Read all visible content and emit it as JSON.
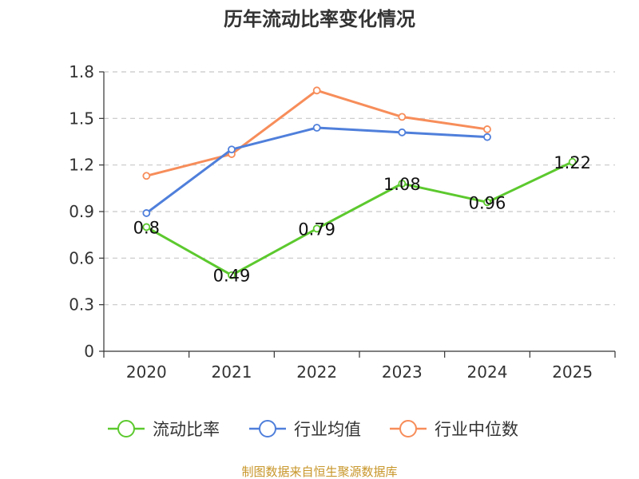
{
  "chart_data": {
    "type": "line",
    "title": "历年流动比率变化情况",
    "categories": [
      "2020",
      "2021",
      "2022",
      "2023",
      "2024",
      "2025"
    ],
    "ylim": [
      0,
      1.8
    ],
    "yticks": [
      0,
      0.3,
      0.6,
      0.9,
      1.2,
      1.5,
      1.8
    ],
    "ytick_labels": [
      "0",
      "0.3",
      "0.6",
      "0.9",
      "1.2",
      "1.5",
      "1.8"
    ],
    "grid": true,
    "legend_position": "bottom-center",
    "series": [
      {
        "name": "流动比率",
        "color": "#5cc92e",
        "values": [
          0.8,
          0.49,
          0.79,
          1.08,
          0.96,
          1.22
        ],
        "labels": [
          "0.8",
          "0.49",
          "0.79",
          "1.08",
          "0.96",
          "1.22"
        ]
      },
      {
        "name": "行业均值",
        "color": "#4f7fdb",
        "values": [
          0.89,
          1.3,
          1.44,
          1.41,
          1.38,
          null
        ]
      },
      {
        "name": "行业中位数",
        "color": "#f78d5a",
        "values": [
          1.13,
          1.27,
          1.68,
          1.51,
          1.43,
          null
        ]
      }
    ]
  },
  "footer": {
    "source": "制图数据来自恒生聚源数据库",
    "source_color": "#c8962a"
  }
}
